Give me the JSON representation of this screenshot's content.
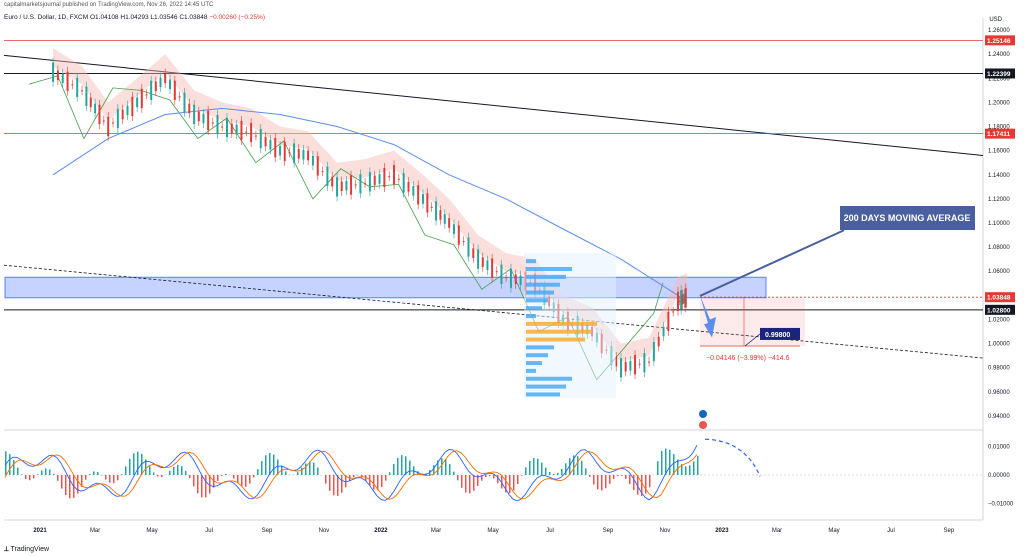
{
  "header": {
    "publisher": "capitalmarketsjournal published on TradingView.com, Nov 26, 2022 14:45 UTC",
    "symbol": "Euro / U.S. Dollar, 1D, FXCM",
    "o_label": "O",
    "o_value": "1.04108",
    "h_label": "H",
    "h_value": "1.04293",
    "l_label": "L",
    "l_value": "1.03546",
    "c_label": "C",
    "c_value": "1.03848",
    "change": "−0.00260 (−0.25%)"
  },
  "footer": {
    "brand": "TradingView"
  },
  "colors": {
    "up": "#26a69a",
    "down": "#e53935",
    "ma200": "#5b8def",
    "trend": "#131722",
    "support_zone": "#5b7fff",
    "annotation_bg": "#4a5f9e",
    "lagging": "#43a047",
    "cloud_bear": "#f5b7b1",
    "cloud_bull": "#a5d6a7",
    "macd": "#2962ff",
    "signal": "#ff6d00",
    "hist_pos": "#26a69a",
    "hist_neg": "#ef5350",
    "level_line": "#e53935"
  },
  "chart_data": {
    "type": "line",
    "title": "Euro / U.S. Dollar, 1D, FXCM",
    "currency": "USD",
    "x_ticks": [
      "2021",
      "Mar",
      "May",
      "Jul",
      "Sep",
      "Nov",
      "2022",
      "Mar",
      "May",
      "Jul",
      "Sep",
      "Nov",
      "2023",
      "Mar",
      "May",
      "Jul",
      "Sep"
    ],
    "y_ticks": [
      "1.26000",
      "1.24000",
      "1.22000",
      "1.20000",
      "1.18000",
      "1.16000",
      "1.14000",
      "1.12000",
      "1.10000",
      "1.08000",
      "1.06000",
      "1.04000",
      "1.02000",
      "1.00000",
      "0.98000",
      "0.96000",
      "0.94000"
    ],
    "ylim": [
      0.93,
      1.27
    ],
    "price_path": [
      {
        "t": "2021-01",
        "v": 1.225
      },
      {
        "t": "2021-02",
        "v": 1.21
      },
      {
        "t": "2021-03",
        "v": 1.18
      },
      {
        "t": "2021-04",
        "v": 1.2
      },
      {
        "t": "2021-05",
        "v": 1.22
      },
      {
        "t": "2021-06",
        "v": 1.19
      },
      {
        "t": "2021-07",
        "v": 1.18
      },
      {
        "t": "2021-08",
        "v": 1.175
      },
      {
        "t": "2021-09",
        "v": 1.16
      },
      {
        "t": "2021-10",
        "v": 1.156
      },
      {
        "t": "2021-11",
        "v": 1.13
      },
      {
        "t": "2021-12",
        "v": 1.133
      },
      {
        "t": "2022-01",
        "v": 1.14
      },
      {
        "t": "2022-02",
        "v": 1.12
      },
      {
        "t": "2022-03",
        "v": 1.1
      },
      {
        "t": "2022-04",
        "v": 1.07
      },
      {
        "t": "2022-05",
        "v": 1.055
      },
      {
        "t": "2022-06",
        "v": 1.05
      },
      {
        "t": "2022-07",
        "v": 1.02
      },
      {
        "t": "2022-08",
        "v": 1.01
      },
      {
        "t": "2022-09",
        "v": 0.98
      },
      {
        "t": "2022-10",
        "v": 0.985
      },
      {
        "t": "2022-11",
        "v": 1.035
      },
      {
        "t": "2022-11-25",
        "v": 1.03848
      }
    ],
    "ma200_path": [
      {
        "t": "2021-01",
        "v": 1.14
      },
      {
        "t": "2021-03",
        "v": 1.17
      },
      {
        "t": "2021-05",
        "v": 1.19
      },
      {
        "t": "2021-07",
        "v": 1.195
      },
      {
        "t": "2021-09",
        "v": 1.19
      },
      {
        "t": "2021-11",
        "v": 1.18
      },
      {
        "t": "2022-01",
        "v": 1.165
      },
      {
        "t": "2022-03",
        "v": 1.14
      },
      {
        "t": "2022-05",
        "v": 1.12
      },
      {
        "t": "2022-07",
        "v": 1.095
      },
      {
        "t": "2022-09",
        "v": 1.07
      },
      {
        "t": "2022-11",
        "v": 1.04
      }
    ],
    "price_labels": [
      {
        "value": 1.25146,
        "label": "1.25146",
        "color": "#e53935"
      },
      {
        "value": 1.22399,
        "label": "1.22399",
        "color": "#131722"
      },
      {
        "value": 1.17411,
        "label": "1.17411",
        "color": "#e53935"
      },
      {
        "value": 1.03848,
        "label": "1.03848",
        "color": "#e53935"
      },
      {
        "value": 1.028,
        "label": "1.02800",
        "color": "#131722"
      }
    ],
    "target_label": "0.99800",
    "measure_text": "−0.04146 (−3.99%) −414.6",
    "annotation": "200 DAYS MOVING AVERAGE",
    "support_zone": [
      1.038,
      1.055
    ],
    "macd_ticks": [
      "0.01000",
      "0.00000",
      "−0.01000"
    ],
    "macd_ylim": [
      -0.015,
      0.015
    ]
  }
}
